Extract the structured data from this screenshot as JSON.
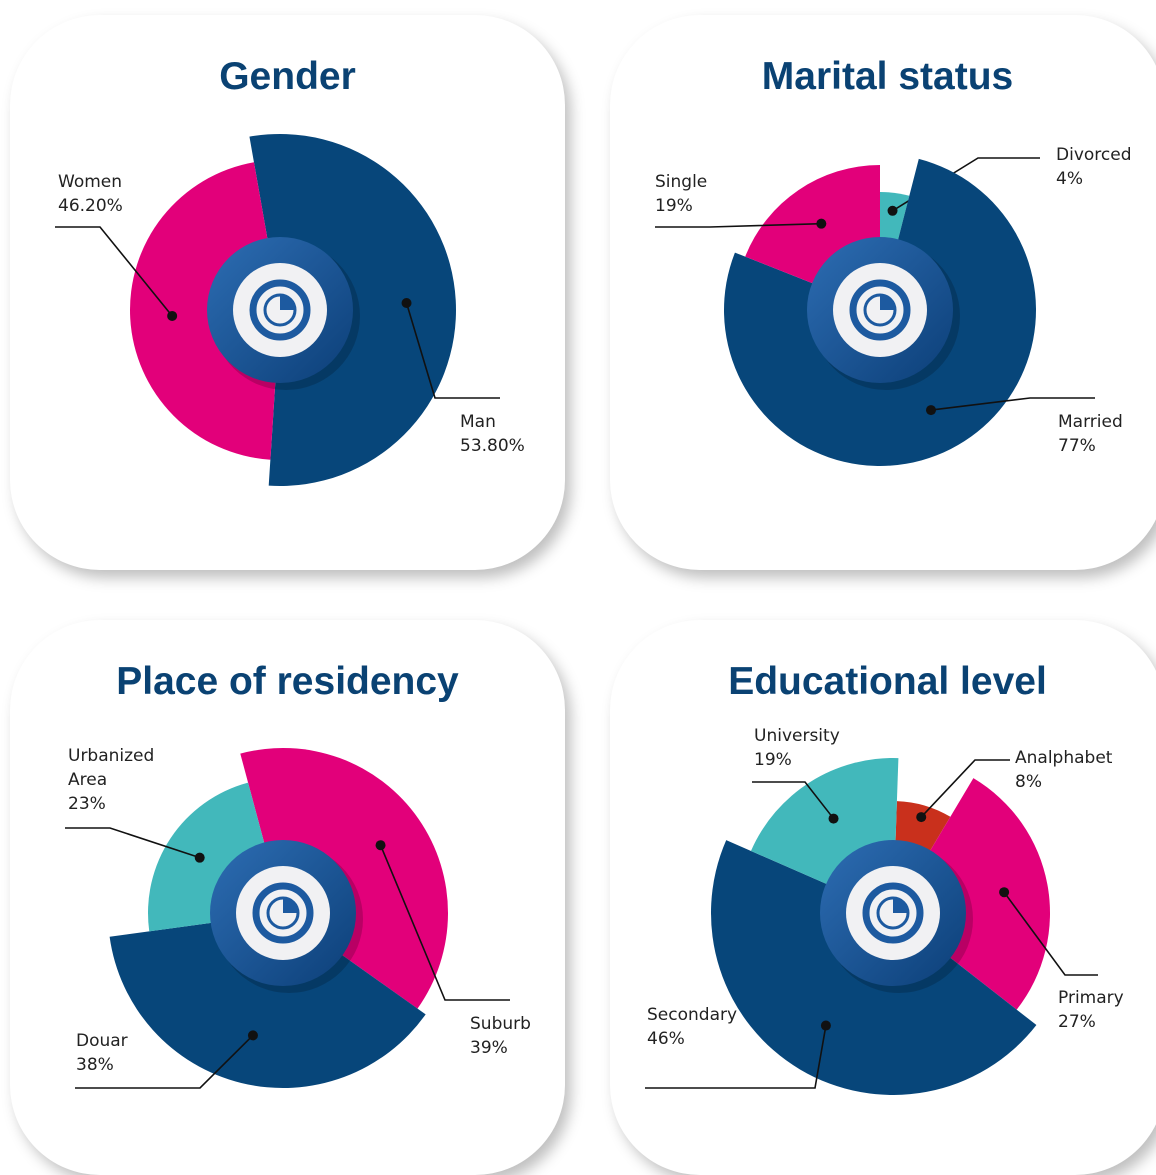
{
  "chart_data": [
    {
      "type": "pie",
      "title": "Gender",
      "categories": [
        "Man",
        "Women"
      ],
      "values": [
        53.8,
        46.2
      ],
      "value_labels": [
        "53.80%",
        "46.20%"
      ],
      "colors": [
        "#07467a",
        "#e2007a"
      ]
    },
    {
      "type": "pie",
      "title": "Marital status",
      "categories": [
        "Divorced",
        "Married",
        "Single"
      ],
      "values": [
        4,
        77,
        19
      ],
      "value_labels": [
        "4%",
        "77%",
        "19%"
      ],
      "colors": [
        "#42b8bb",
        "#07467a",
        "#e2007a"
      ]
    },
    {
      "type": "pie",
      "title": "Place of residency",
      "categories": [
        "Suburb",
        "Douar",
        "Urbanized Area"
      ],
      "values": [
        39,
        38,
        23
      ],
      "value_labels": [
        "39%",
        "38%",
        "23%"
      ],
      "colors": [
        "#e2007a",
        "#07467a",
        "#42b8bb"
      ]
    },
    {
      "type": "pie",
      "title": "Educational level",
      "categories": [
        "Analphabet",
        "Primary",
        "Secondary",
        "University"
      ],
      "values": [
        8,
        27,
        46,
        19
      ],
      "value_labels": [
        "8%",
        "27%",
        "46%",
        "19%"
      ],
      "colors": [
        "#c9301c",
        "#e2007a",
        "#07467a",
        "#42b8bb"
      ]
    }
  ]
}
